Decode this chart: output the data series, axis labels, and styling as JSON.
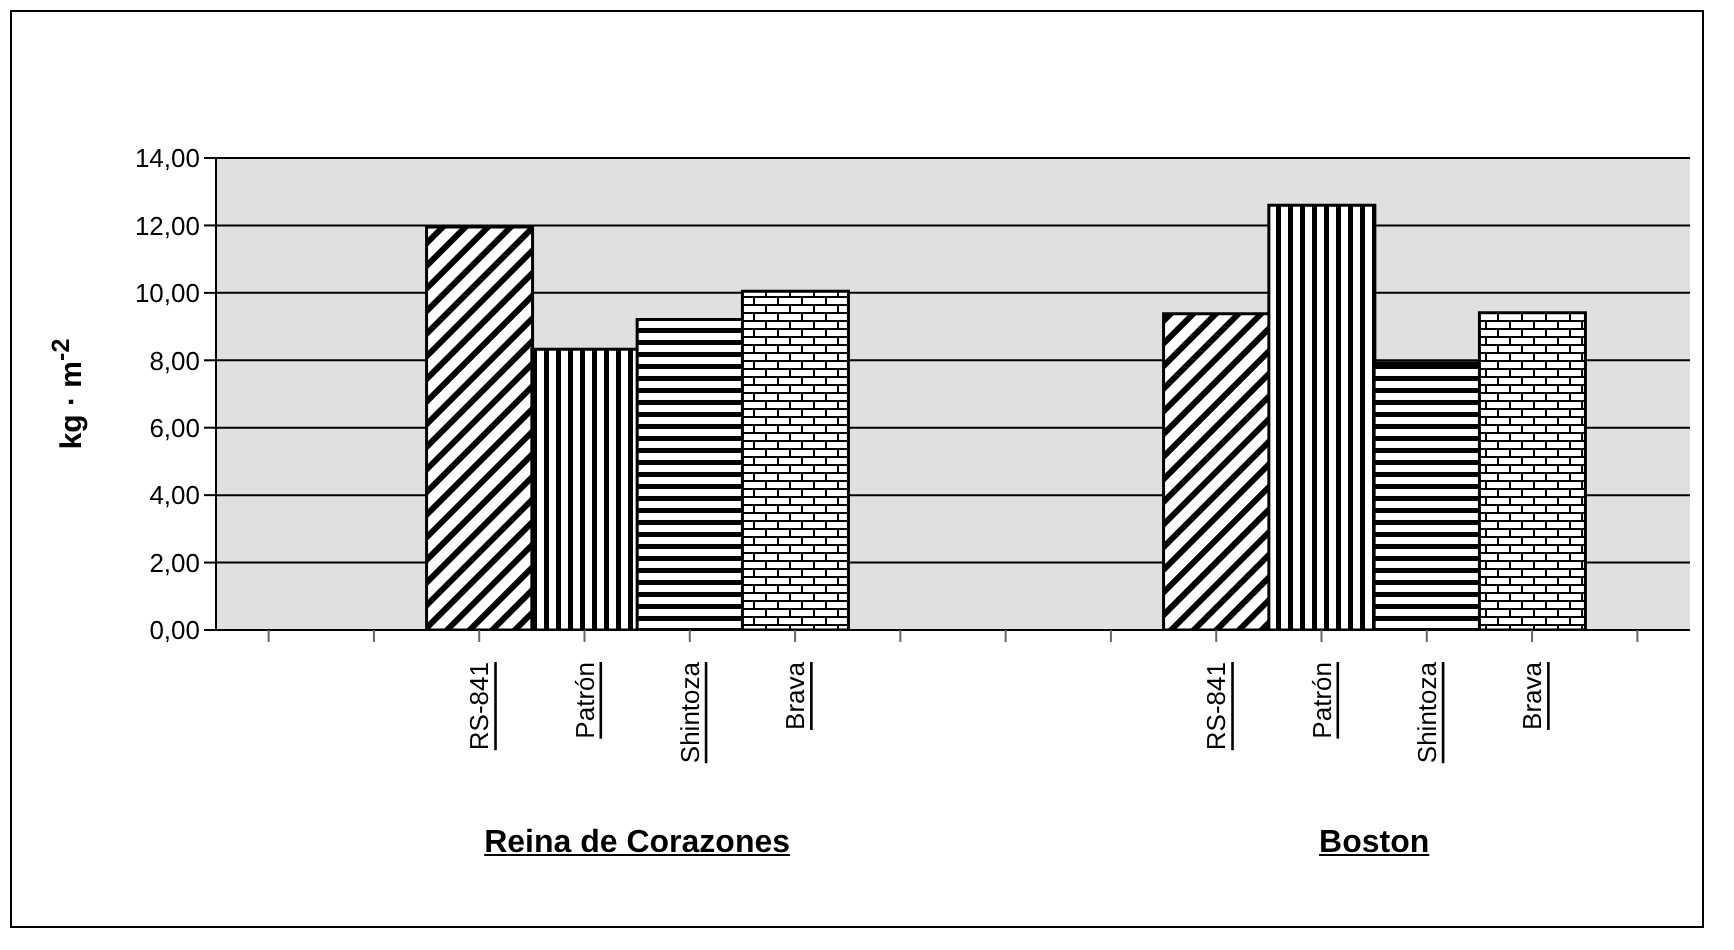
{
  "chart_data": {
    "type": "bar",
    "ylabel": "kg · m$^{-2}$",
    "categories": [
      null,
      null,
      "RS-841",
      "Patrón",
      "Shintoza",
      "Brava",
      null,
      null,
      null,
      "RS-841",
      "Patrón",
      "Shintoza",
      "Brava",
      null
    ],
    "values": [
      null,
      null,
      11.95,
      8.33,
      9.21,
      10.05,
      null,
      null,
      null,
      9.38,
      12.6,
      7.93,
      9.41,
      null
    ],
    "color": "#000000",
    "ylim": [
      0,
      14
    ],
    "yticks": [
      {
        "value": 0,
        "label": "0,00"
      },
      {
        "value": 2,
        "label": "2,00"
      },
      {
        "value": 4,
        "label": "4,00"
      },
      {
        "value": 6,
        "label": "6,00"
      },
      {
        "value": 8,
        "label": "8,00"
      },
      {
        "value": 10,
        "label": "10,00"
      },
      {
        "value": 12,
        "label": "12,00"
      },
      {
        "value": 14,
        "label": "14,00"
      }
    ],
    "grid": "y",
    "annotations": [
      "Reina de Corazones",
      "Boston"
    ]
  }
}
